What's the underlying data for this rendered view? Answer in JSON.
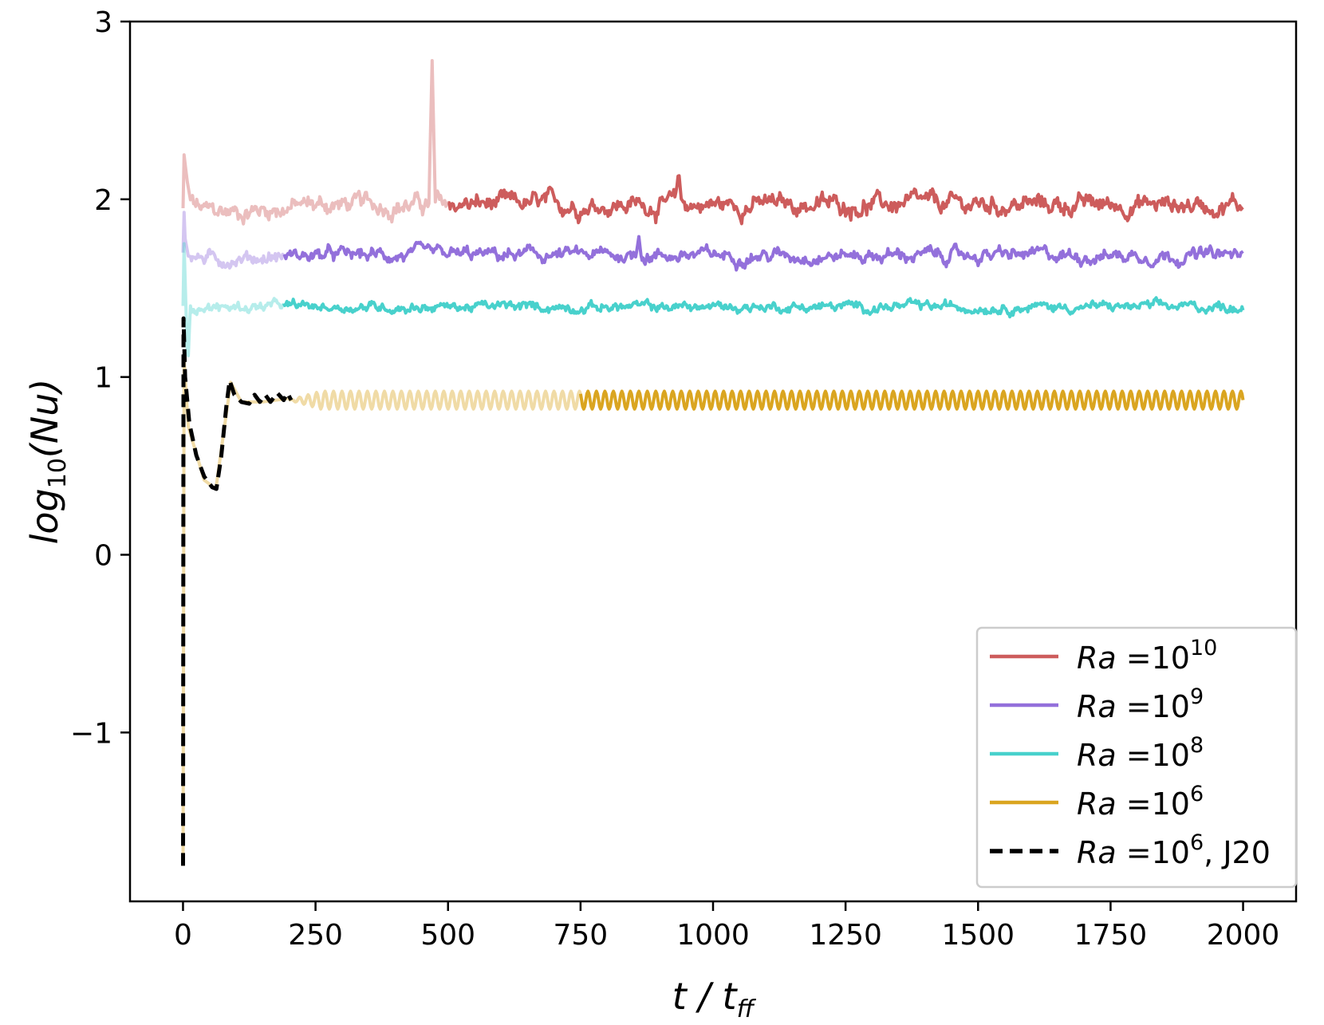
{
  "chart_data": {
    "type": "line",
    "xlabel": {
      "main": "t / t",
      "sub": "ff"
    },
    "ylabel": {
      "pre": "log",
      "sub": "10",
      "post": "(Nu)"
    },
    "xlim": [
      -100,
      2100
    ],
    "ylim": [
      -1.95,
      3.0
    ],
    "xticks": [
      0,
      250,
      500,
      750,
      1000,
      1250,
      1500,
      1750,
      2000
    ],
    "xtick_labels": [
      "0",
      "250",
      "500",
      "750",
      "1000",
      "1250",
      "1500",
      "1750",
      "2000"
    ],
    "yticks": [
      -1,
      0,
      1,
      2,
      3
    ],
    "ytick_labels": [
      "−1",
      "0",
      "1",
      "2",
      "3"
    ],
    "grid": false,
    "legend_position": "lower-right",
    "series": [
      {
        "name_prefix": "Ra",
        "name_base": "=10",
        "name_exp": "10",
        "name_suffix": "",
        "color": "#cd5c5c",
        "style": "noisy",
        "dashed": false,
        "mean": 1.97,
        "noise": 0.035,
        "faded_until": 500,
        "start_values": [
          [
            0,
            1.95
          ],
          [
            2,
            2.25
          ],
          [
            8,
            2.1
          ],
          [
            15,
            1.98
          ],
          [
            40,
            1.93
          ],
          [
            100,
            1.93
          ],
          [
            250,
            1.97
          ],
          [
            450,
            1.97
          ]
        ],
        "spikes": [
          [
            470,
            2.78
          ],
          [
            935,
            2.16
          ]
        ]
      },
      {
        "name_prefix": "Ra",
        "name_base": "=10",
        "name_exp": "9",
        "name_suffix": "",
        "color": "#9370db",
        "style": "noisy",
        "dashed": false,
        "mean": 1.685,
        "noise": 0.025,
        "faded_until": 190,
        "start_values": [
          [
            0,
            1.7
          ],
          [
            1,
            2.0
          ],
          [
            4,
            1.78
          ],
          [
            10,
            1.68
          ],
          [
            60,
            1.66
          ],
          [
            190,
            1.68
          ]
        ],
        "spikes": [
          [
            860,
            1.79
          ]
        ]
      },
      {
        "name_prefix": "Ra",
        "name_base": "=10",
        "name_exp": "8",
        "name_suffix": "",
        "color": "#48d1cc",
        "style": "noisy",
        "dashed": false,
        "mean": 1.395,
        "noise": 0.018,
        "faded_until": 190,
        "start_values": [
          [
            0,
            1.4
          ],
          [
            2,
            1.75
          ],
          [
            5,
            1.45
          ],
          [
            9,
            1.05
          ],
          [
            14,
            1.4
          ],
          [
            60,
            1.39
          ],
          [
            190,
            1.4
          ]
        ],
        "spikes": []
      },
      {
        "name_prefix": "Ra",
        "name_base": "=10",
        "name_exp": "6",
        "name_suffix": "",
        "color": "#daa520",
        "style": "oscillating",
        "dashed": false,
        "mean": 0.87,
        "amplitude": 0.05,
        "period": 16,
        "faded_until": 750,
        "start_values": [
          [
            0,
            -1.75
          ],
          [
            2,
            1.1
          ],
          [
            10,
            0.72
          ],
          [
            40,
            0.42
          ],
          [
            62,
            0.37
          ],
          [
            75,
            0.65
          ],
          [
            90,
            0.97
          ],
          [
            110,
            0.86
          ],
          [
            150,
            0.86
          ],
          [
            200,
            0.88
          ]
        ],
        "spikes": []
      },
      {
        "name_prefix": "Ra",
        "name_base": "=10",
        "name_exp": "6",
        "name_suffix": ", J20",
        "color": "#000000",
        "style": "reference",
        "dashed": true,
        "values": [
          [
            0,
            -1.75
          ],
          [
            1,
            1.33
          ],
          [
            4,
            1.0
          ],
          [
            12,
            0.74
          ],
          [
            25,
            0.56
          ],
          [
            40,
            0.44
          ],
          [
            55,
            0.38
          ],
          [
            63,
            0.37
          ],
          [
            72,
            0.55
          ],
          [
            82,
            0.84
          ],
          [
            88,
            0.98
          ],
          [
            97,
            0.9
          ],
          [
            110,
            0.86
          ],
          [
            125,
            0.85
          ],
          [
            135,
            0.9
          ],
          [
            145,
            0.86
          ],
          [
            155,
            0.9
          ],
          [
            165,
            0.86
          ],
          [
            178,
            0.91
          ],
          [
            190,
            0.87
          ],
          [
            197,
            0.91
          ],
          [
            204,
            0.87
          ]
        ]
      }
    ]
  }
}
